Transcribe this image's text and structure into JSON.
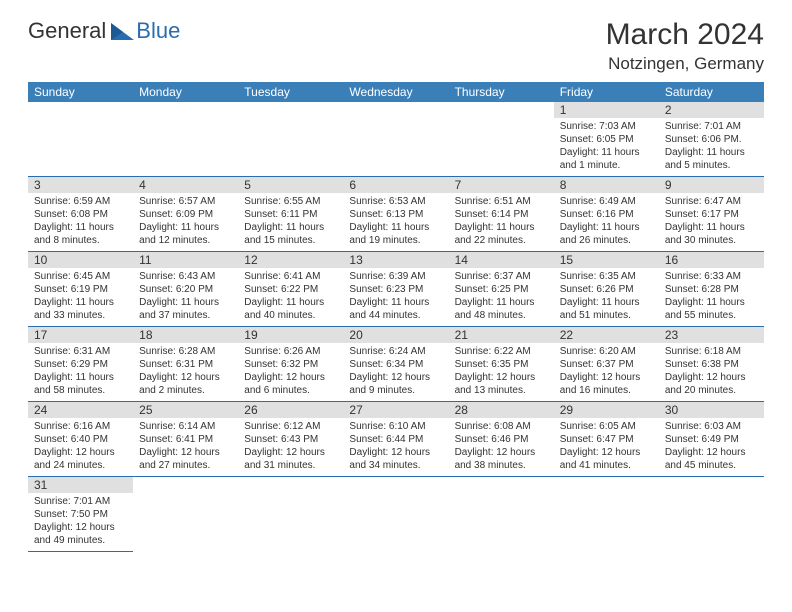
{
  "logo": {
    "general": "General",
    "blue": "Blue"
  },
  "title": "March 2024",
  "location": "Notzingen, Germany",
  "colors": {
    "header_bg": "#3b7fb8",
    "header_text": "#ffffff",
    "daynum_bg": "#e0e0e0",
    "border": "#2a6cb0",
    "text": "#333333",
    "logo_blue": "#2a6cb0"
  },
  "days_of_week": [
    "Sunday",
    "Monday",
    "Tuesday",
    "Wednesday",
    "Thursday",
    "Friday",
    "Saturday"
  ],
  "weeks": [
    [
      null,
      null,
      null,
      null,
      null,
      {
        "n": "1",
        "sunrise": "Sunrise: 7:03 AM",
        "sunset": "Sunset: 6:05 PM",
        "daylight1": "Daylight: 11 hours",
        "daylight2": "and 1 minute."
      },
      {
        "n": "2",
        "sunrise": "Sunrise: 7:01 AM",
        "sunset": "Sunset: 6:06 PM.",
        "daylight1": "Daylight: 11 hours",
        "daylight2": "and 5 minutes."
      }
    ],
    [
      {
        "n": "3",
        "sunrise": "Sunrise: 6:59 AM",
        "sunset": "Sunset: 6:08 PM",
        "daylight1": "Daylight: 11 hours",
        "daylight2": "and 8 minutes."
      },
      {
        "n": "4",
        "sunrise": "Sunrise: 6:57 AM",
        "sunset": "Sunset: 6:09 PM",
        "daylight1": "Daylight: 11 hours",
        "daylight2": "and 12 minutes."
      },
      {
        "n": "5",
        "sunrise": "Sunrise: 6:55 AM",
        "sunset": "Sunset: 6:11 PM",
        "daylight1": "Daylight: 11 hours",
        "daylight2": "and 15 minutes."
      },
      {
        "n": "6",
        "sunrise": "Sunrise: 6:53 AM",
        "sunset": "Sunset: 6:13 PM",
        "daylight1": "Daylight: 11 hours",
        "daylight2": "and 19 minutes."
      },
      {
        "n": "7",
        "sunrise": "Sunrise: 6:51 AM",
        "sunset": "Sunset: 6:14 PM",
        "daylight1": "Daylight: 11 hours",
        "daylight2": "and 22 minutes."
      },
      {
        "n": "8",
        "sunrise": "Sunrise: 6:49 AM",
        "sunset": "Sunset: 6:16 PM",
        "daylight1": "Daylight: 11 hours",
        "daylight2": "and 26 minutes."
      },
      {
        "n": "9",
        "sunrise": "Sunrise: 6:47 AM",
        "sunset": "Sunset: 6:17 PM",
        "daylight1": "Daylight: 11 hours",
        "daylight2": "and 30 minutes."
      }
    ],
    [
      {
        "n": "10",
        "sunrise": "Sunrise: 6:45 AM",
        "sunset": "Sunset: 6:19 PM",
        "daylight1": "Daylight: 11 hours",
        "daylight2": "and 33 minutes."
      },
      {
        "n": "11",
        "sunrise": "Sunrise: 6:43 AM",
        "sunset": "Sunset: 6:20 PM",
        "daylight1": "Daylight: 11 hours",
        "daylight2": "and 37 minutes."
      },
      {
        "n": "12",
        "sunrise": "Sunrise: 6:41 AM",
        "sunset": "Sunset: 6:22 PM",
        "daylight1": "Daylight: 11 hours",
        "daylight2": "and 40 minutes."
      },
      {
        "n": "13",
        "sunrise": "Sunrise: 6:39 AM",
        "sunset": "Sunset: 6:23 PM",
        "daylight1": "Daylight: 11 hours",
        "daylight2": "and 44 minutes."
      },
      {
        "n": "14",
        "sunrise": "Sunrise: 6:37 AM",
        "sunset": "Sunset: 6:25 PM",
        "daylight1": "Daylight: 11 hours",
        "daylight2": "and 48 minutes."
      },
      {
        "n": "15",
        "sunrise": "Sunrise: 6:35 AM",
        "sunset": "Sunset: 6:26 PM",
        "daylight1": "Daylight: 11 hours",
        "daylight2": "and 51 minutes."
      },
      {
        "n": "16",
        "sunrise": "Sunrise: 6:33 AM",
        "sunset": "Sunset: 6:28 PM",
        "daylight1": "Daylight: 11 hours",
        "daylight2": "and 55 minutes."
      }
    ],
    [
      {
        "n": "17",
        "sunrise": "Sunrise: 6:31 AM",
        "sunset": "Sunset: 6:29 PM",
        "daylight1": "Daylight: 11 hours",
        "daylight2": "and 58 minutes."
      },
      {
        "n": "18",
        "sunrise": "Sunrise: 6:28 AM",
        "sunset": "Sunset: 6:31 PM",
        "daylight1": "Daylight: 12 hours",
        "daylight2": "and 2 minutes."
      },
      {
        "n": "19",
        "sunrise": "Sunrise: 6:26 AM",
        "sunset": "Sunset: 6:32 PM",
        "daylight1": "Daylight: 12 hours",
        "daylight2": "and 6 minutes."
      },
      {
        "n": "20",
        "sunrise": "Sunrise: 6:24 AM",
        "sunset": "Sunset: 6:34 PM",
        "daylight1": "Daylight: 12 hours",
        "daylight2": "and 9 minutes."
      },
      {
        "n": "21",
        "sunrise": "Sunrise: 6:22 AM",
        "sunset": "Sunset: 6:35 PM",
        "daylight1": "Daylight: 12 hours",
        "daylight2": "and 13 minutes."
      },
      {
        "n": "22",
        "sunrise": "Sunrise: 6:20 AM",
        "sunset": "Sunset: 6:37 PM",
        "daylight1": "Daylight: 12 hours",
        "daylight2": "and 16 minutes."
      },
      {
        "n": "23",
        "sunrise": "Sunrise: 6:18 AM",
        "sunset": "Sunset: 6:38 PM",
        "daylight1": "Daylight: 12 hours",
        "daylight2": "and 20 minutes."
      }
    ],
    [
      {
        "n": "24",
        "sunrise": "Sunrise: 6:16 AM",
        "sunset": "Sunset: 6:40 PM",
        "daylight1": "Daylight: 12 hours",
        "daylight2": "and 24 minutes."
      },
      {
        "n": "25",
        "sunrise": "Sunrise: 6:14 AM",
        "sunset": "Sunset: 6:41 PM",
        "daylight1": "Daylight: 12 hours",
        "daylight2": "and 27 minutes."
      },
      {
        "n": "26",
        "sunrise": "Sunrise: 6:12 AM",
        "sunset": "Sunset: 6:43 PM",
        "daylight1": "Daylight: 12 hours",
        "daylight2": "and 31 minutes."
      },
      {
        "n": "27",
        "sunrise": "Sunrise: 6:10 AM",
        "sunset": "Sunset: 6:44 PM",
        "daylight1": "Daylight: 12 hours",
        "daylight2": "and 34 minutes."
      },
      {
        "n": "28",
        "sunrise": "Sunrise: 6:08 AM",
        "sunset": "Sunset: 6:46 PM",
        "daylight1": "Daylight: 12 hours",
        "daylight2": "and 38 minutes."
      },
      {
        "n": "29",
        "sunrise": "Sunrise: 6:05 AM",
        "sunset": "Sunset: 6:47 PM",
        "daylight1": "Daylight: 12 hours",
        "daylight2": "and 41 minutes."
      },
      {
        "n": "30",
        "sunrise": "Sunrise: 6:03 AM",
        "sunset": "Sunset: 6:49 PM",
        "daylight1": "Daylight: 12 hours",
        "daylight2": "and 45 minutes."
      }
    ],
    [
      {
        "n": "31",
        "sunrise": "Sunrise: 7:01 AM",
        "sunset": "Sunset: 7:50 PM",
        "daylight1": "Daylight: 12 hours",
        "daylight2": "and 49 minutes."
      },
      null,
      null,
      null,
      null,
      null,
      null
    ]
  ]
}
